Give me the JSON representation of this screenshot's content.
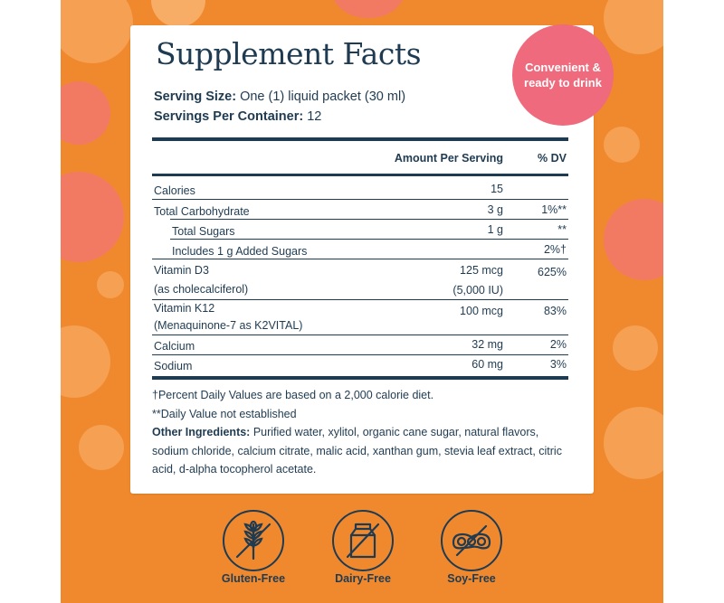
{
  "title": "Supplement Facts",
  "serving_size": {
    "label": "Serving Size:",
    "value": "One (1) liquid packet (30 ml)"
  },
  "servings_per_container": {
    "label": "Servings Per Container:",
    "value": "12"
  },
  "badge": {
    "line1": "Convenient &",
    "line2": "ready to drink"
  },
  "table": {
    "header_amount": "Amount Per Serving",
    "header_dv": "% DV",
    "rows": [
      {
        "name": "Calories",
        "amount": "15",
        "dv": ""
      },
      {
        "name": "Total Carbohydrate",
        "amount": "3 g",
        "dv": "1%**"
      },
      {
        "name": "Total Sugars",
        "amount": "1 g",
        "dv": "**"
      },
      {
        "name": "Includes 1 g Added Sugars",
        "amount": "",
        "dv": "2%†"
      },
      {
        "name": "Vitamin D3",
        "name2": "(as cholecalciferol)",
        "amount": "125 mcg",
        "amount2": "(5,000 IU)",
        "dv": "625%"
      },
      {
        "name": "Vitamin K12",
        "name2": "(Menaquinone-7 as K2VITAL)",
        "amount": "100 mcg",
        "dv": "83%"
      },
      {
        "name": "Calcium",
        "amount": "32 mg",
        "dv": "2%"
      },
      {
        "name": "Sodium",
        "amount": "60 mg",
        "dv": "3%"
      }
    ]
  },
  "footnotes": {
    "percent_dv": "†Percent Daily Values are based on a 2,000 calorie diet.",
    "not_established": "**Daily Value not established",
    "other_label": "Other Ingredients:",
    "other_text": " Purified water, xylitol, organic cane sugar, natural flavors, sodium chloride, calcium citrate, malic acid, xanthan gum, stevia leaf extract, citric acid, d-alpha tocopherol acetate."
  },
  "badges": [
    {
      "label": "Gluten-Free",
      "icon": "wheat-crossed-icon"
    },
    {
      "label": "Dairy-Free",
      "icon": "milk-carton-crossed-icon"
    },
    {
      "label": "Soy-Free",
      "icon": "soybean-crossed-icon"
    }
  ],
  "colors": {
    "background_orange": "#f0892e",
    "navy_text": "#1f3b52",
    "badge_pink": "#ee6a7c"
  }
}
